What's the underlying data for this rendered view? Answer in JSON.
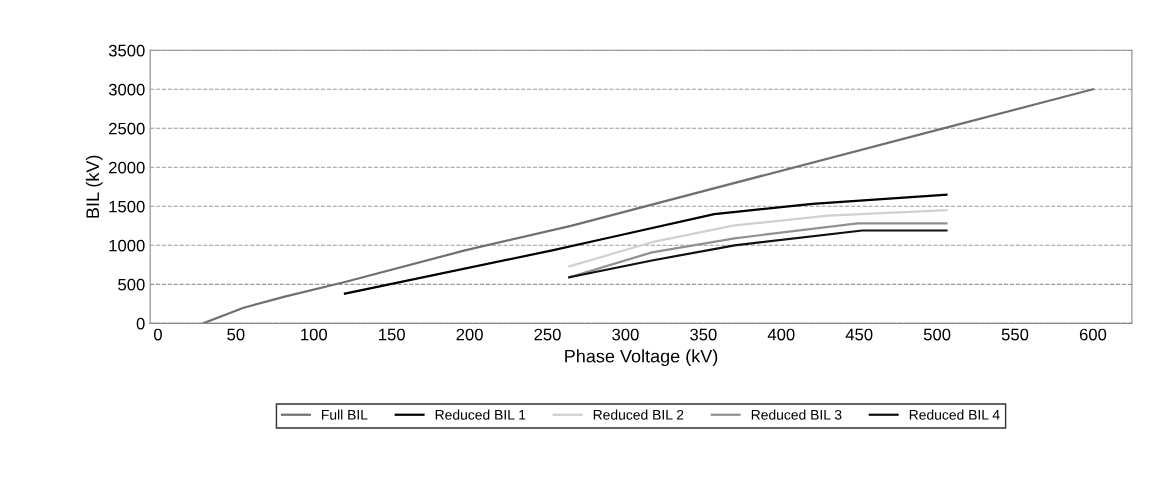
{
  "chart_data": {
    "type": "line",
    "xlabel": "Phase Voltage (kV)",
    "ylabel": "BIL (kV)",
    "xlim": [
      -5,
      625
    ],
    "xticks": [
      0,
      50,
      100,
      150,
      200,
      250,
      300,
      350,
      400,
      450,
      500,
      550,
      600
    ],
    "ylim": [
      0,
      3500
    ],
    "yticks": [
      0,
      500,
      1000,
      1500,
      2000,
      2500,
      3000,
      3500
    ],
    "grid": "y",
    "legend": "bottom",
    "marker": "none",
    "line_style": "solid",
    "series": [
      {
        "name": "Full BIL",
        "color": "#707070",
        "x": [
          29,
          55,
          82,
          120,
          197,
          265,
          504,
          600
        ],
        "values": [
          0,
          200,
          345,
          530,
          935,
          1250,
          2500,
          3000
        ]
      },
      {
        "name": "Reduced BIL 1",
        "color": "#000000",
        "x": [
          120,
          253,
          290,
          357,
          420,
          506
        ],
        "values": [
          380,
          935,
          1100,
          1400,
          1530,
          1650
        ]
      },
      {
        "name": "Reduced BIL 2",
        "color": "#d0d0d0",
        "x": [
          264,
          317,
          370,
          430,
          506
        ],
        "values": [
          730,
          1040,
          1255,
          1380,
          1450
        ]
      },
      {
        "name": "Reduced BIL 3",
        "color": "#909090",
        "x": [
          264,
          317,
          370,
          449,
          506
        ],
        "values": [
          590,
          910,
          1090,
          1280,
          1280
        ]
      },
      {
        "name": "Reduced BIL 4",
        "color": "#101010",
        "x": [
          264,
          317,
          370,
          452,
          506
        ],
        "values": [
          590,
          805,
          1000,
          1190,
          1190
        ]
      }
    ]
  }
}
